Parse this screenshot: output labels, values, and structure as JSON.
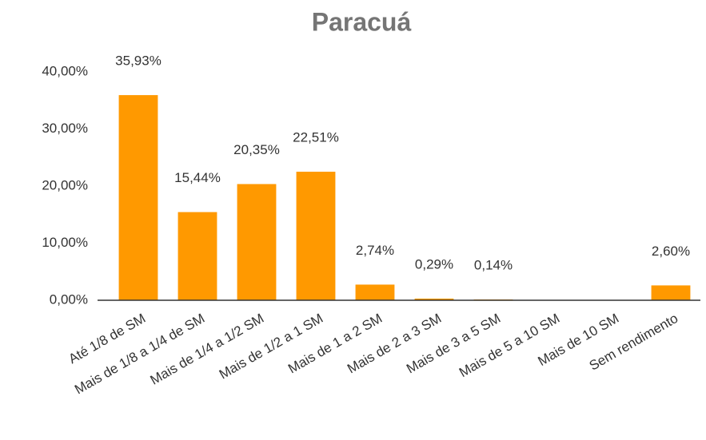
{
  "chart_data": {
    "type": "bar",
    "title": "Paracuá",
    "categories": [
      "Até 1/8 de SM",
      "Mais de 1/8 a 1/4 de SM",
      "Mais de 1/4 a 1/2 SM",
      "Mais de 1/2 a 1 SM",
      "Mais de 1 a 2 SM",
      "Mais de 2 a 3 SM",
      "Mais de 3 a 5 SM",
      "Mais de 5 a 10 SM",
      "Mais de 10 SM",
      "Sem rendimento"
    ],
    "values": [
      35.93,
      15.44,
      20.35,
      22.51,
      2.74,
      0.29,
      0.14,
      0,
      0,
      2.6
    ],
    "value_labels": [
      "35,93%",
      "15,44%",
      "20,35%",
      "22,51%",
      "2,74%",
      "0,29%",
      "0,14%",
      null,
      null,
      "2,60%"
    ],
    "color": "#ff9900",
    "ylim": [
      0,
      40
    ],
    "yticks": [
      {
        "value": 0,
        "label": "0,00%"
      },
      {
        "value": 10,
        "label": "10,00%"
      },
      {
        "value": 20,
        "label": "20,00%"
      },
      {
        "value": 30,
        "label": "30,00%"
      },
      {
        "value": 40,
        "label": "40,00%"
      }
    ],
    "grid": false
  }
}
